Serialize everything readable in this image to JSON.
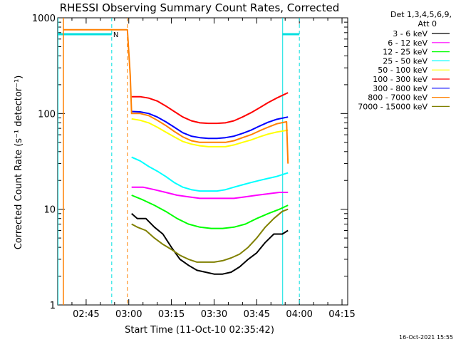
{
  "chart_data": {
    "type": "line",
    "title": "RHESSI Observing Summary Count Rates, Corrected",
    "xlabel": "Start Time (11-Oct-10 02:35:42)",
    "ylabel": "Corrected Count Rate (s⁻¹ detector⁻¹)",
    "yscale": "log",
    "ylim": [
      1,
      1000
    ],
    "xlim_minutes_after_0235": [
      0,
      102
    ],
    "x_ticks": [
      "02:45",
      "03:00",
      "03:15",
      "03:30",
      "03:45",
      "04:00",
      "04:15"
    ],
    "y_ticks": [
      "1",
      "10",
      "100",
      "1000"
    ],
    "legend_header": [
      "Det 1,3,4,5,6,9,",
      "Att 0"
    ],
    "legend_position": "right",
    "footer_timestamp": "16-Oct-2021 15:55",
    "flag_label": "N",
    "series": [
      {
        "name": "3 - 6 keV",
        "color": "#000000",
        "x": [
          26,
          28,
          31,
          34,
          37,
          40,
          43,
          46,
          49,
          52,
          55,
          58,
          61,
          64,
          67,
          70,
          73,
          76,
          79,
          81
        ],
        "y": [
          9,
          8,
          8,
          6.5,
          5.5,
          4,
          3,
          2.6,
          2.3,
          2.2,
          2.1,
          2.1,
          2.2,
          2.5,
          3,
          3.5,
          4.5,
          5.5,
          5.5,
          6
        ]
      },
      {
        "name": "6 - 12 keV",
        "color": "#ff00ff",
        "x": [
          26,
          30,
          34,
          38,
          42,
          46,
          50,
          54,
          58,
          62,
          66,
          70,
          74,
          78,
          81
        ],
        "y": [
          17,
          17,
          16,
          15,
          14,
          13.5,
          13,
          13,
          13,
          13,
          13.5,
          14,
          14.5,
          15,
          15
        ]
      },
      {
        "name": "12 - 25 keV",
        "color": "#00ff00",
        "x": [
          26,
          30,
          34,
          38,
          42,
          46,
          50,
          54,
          58,
          62,
          66,
          70,
          74,
          78,
          81
        ],
        "y": [
          14,
          12.5,
          11,
          9.5,
          8,
          7,
          6.5,
          6.3,
          6.3,
          6.5,
          7,
          8,
          9,
          10,
          11
        ]
      },
      {
        "name": "25 - 50 keV",
        "color": "#00ffff",
        "x": [
          26,
          29,
          32,
          35,
          38,
          41,
          44,
          47,
          50,
          53,
          56,
          59,
          62,
          65,
          68,
          71,
          74,
          77,
          81
        ],
        "y": [
          35,
          32,
          28,
          25,
          22,
          19,
          17,
          16,
          15.5,
          15.5,
          15.5,
          16,
          17,
          18,
          19,
          20,
          21,
          22,
          24
        ]
      },
      {
        "name": "50 - 100 keV",
        "color": "#ffff00",
        "x": [
          26,
          29,
          32,
          35,
          38,
          41,
          44,
          47,
          50,
          53,
          56,
          59,
          62,
          65,
          68,
          71,
          74,
          77,
          81
        ],
        "y": [
          88,
          85,
          80,
          72,
          64,
          57,
          51,
          48,
          46,
          45,
          45,
          45,
          47,
          50,
          53,
          57,
          61,
          64,
          67
        ]
      },
      {
        "name": "100 - 300 keV",
        "color": "#ff0000",
        "x": [
          26,
          29,
          32,
          35,
          38,
          41,
          44,
          47,
          50,
          53,
          56,
          59,
          62,
          65,
          68,
          71,
          74,
          77,
          81
        ],
        "y": [
          150,
          150,
          145,
          135,
          120,
          105,
          92,
          84,
          80,
          79,
          79,
          80,
          84,
          92,
          102,
          115,
          130,
          145,
          165
        ]
      },
      {
        "name": "300 - 800 keV",
        "color": "#0000ff",
        "x": [
          26,
          29,
          32,
          35,
          38,
          41,
          44,
          47,
          50,
          53,
          56,
          59,
          62,
          65,
          68,
          71,
          74,
          77,
          81
        ],
        "y": [
          105,
          104,
          100,
          92,
          82,
          72,
          63,
          58,
          56,
          55,
          55,
          56,
          58,
          62,
          67,
          74,
          81,
          87,
          92
        ]
      },
      {
        "name": "800 - 7000 keV",
        "color": "#ff8000",
        "x": [
          2,
          8,
          14,
          20,
          24.5,
          25.5,
          26,
          29,
          32,
          35,
          38,
          41,
          44,
          47,
          50,
          53,
          56,
          59,
          62,
          65,
          68,
          71,
          74,
          77,
          80.5,
          81
        ],
        "y": [
          750,
          750,
          750,
          750,
          750,
          250,
          100,
          100,
          95,
          85,
          75,
          65,
          57,
          52,
          50,
          50,
          50,
          50,
          52,
          56,
          60,
          66,
          72,
          78,
          82,
          30
        ]
      },
      {
        "name": "7000 - 15000 keV",
        "color": "#808000",
        "x": [
          26,
          28,
          31,
          34,
          37,
          40,
          43,
          46,
          49,
          52,
          55,
          58,
          61,
          64,
          67,
          70,
          73,
          76,
          79,
          81
        ],
        "y": [
          7,
          6.5,
          6,
          5,
          4.3,
          3.8,
          3.3,
          3,
          2.8,
          2.8,
          2.8,
          2.9,
          3.1,
          3.4,
          4,
          5,
          6.5,
          8,
          9.5,
          10
        ]
      }
    ],
    "markers": {
      "cyan_solid": [
        0,
        79
      ],
      "cyan_dashed": [
        19,
        85
      ],
      "orange_solid": [
        2
      ],
      "orange_dashed": [
        24.5
      ],
      "cyan_flag_segments": [
        [
          0,
          19
        ],
        [
          79,
          85
        ]
      ]
    }
  }
}
